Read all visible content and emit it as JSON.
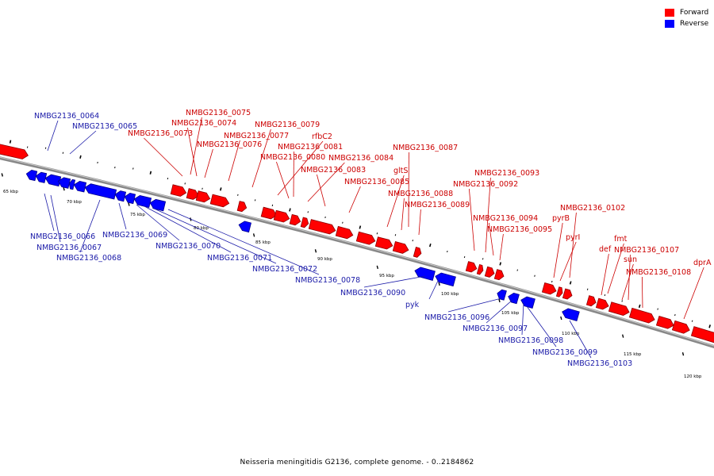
{
  "legend": {
    "forward_label": "Forward",
    "reverse_label": "Reverse",
    "forward_color": "#ff0000",
    "reverse_color": "#0000ff",
    "forward_stroke": "#8b0000",
    "reverse_stroke": "#00008b",
    "label_forward_color": "#cc0000",
    "label_reverse_color": "#1a1aa8"
  },
  "caption": "Neisseria meningitidis G2136, complete genome. - 0..2184862",
  "scale_labels": [
    "65 kbp",
    "70 kbp",
    "75 kbp",
    "80 kbp",
    "85 kbp",
    "90 kbp",
    "95 kbp",
    "100 kbp",
    "105 kbp",
    "110 kbp",
    "115 kbp",
    "120 kbp"
  ],
  "forward_labels": [
    "NMBG2136_0075",
    "NMBG2136_0074",
    "NMBG2136_0073",
    "NMBG2136_0076",
    "NMBG2136_0079",
    "NMBG2136_0077",
    "rfbC2",
    "NMBG2136_0081",
    "NMBG2136_0080",
    "NMBG2136_0084",
    "NMBG2136_0087",
    "NMBG2136_0083",
    "gltS",
    "NMBG2136_0085",
    "NMBG2136_0088",
    "NMBG2136_0089",
    "NMBG2136_0093",
    "NMBG2136_0092",
    "NMBG2136_0094",
    "NMBG2136_0095",
    "NMBG2136_0102",
    "pyrB",
    "pyrI",
    "fmt",
    "def",
    "NMBG2136_0107",
    "sun",
    "NMBG2136_0108",
    "dprA"
  ],
  "reverse_labels": [
    "NMBG2136_0064",
    "NMBG2136_0065",
    "NMBG2136_0066",
    "NMBG2136_0067",
    "NMBG2136_0068",
    "NMBG2136_0069",
    "NMBG2136_0070",
    "NMBG2136_0071",
    "NMBG2136_0072",
    "NMBG2136_0078",
    "NMBG2136_0090",
    "pyk",
    "NMBG2136_0096",
    "NMBG2136_0097",
    "NMBG2136_0098",
    "NMBG2136_0099",
    "NMBG2136_0103"
  ]
}
